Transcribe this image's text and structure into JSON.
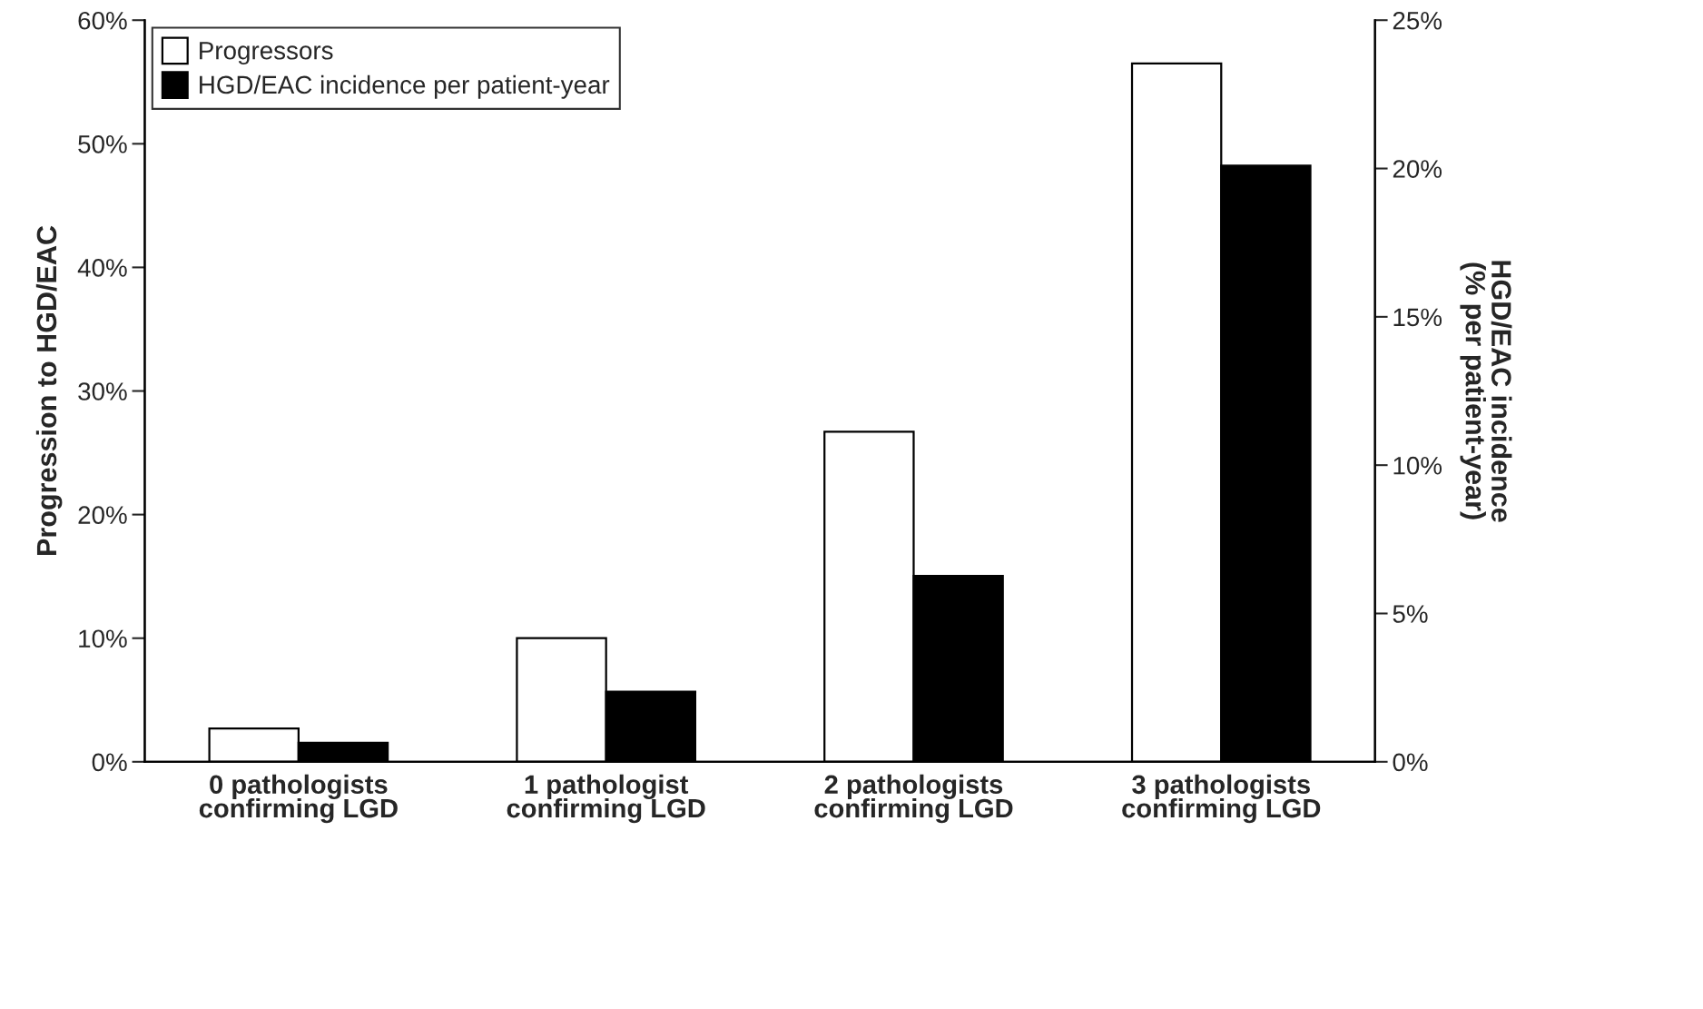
{
  "chart_data": {
    "type": "bar",
    "ylabel": "Progression to HGD/EAC",
    "y2label": "HGD/EAC incidence\n(% per patient-year)",
    "categories": [
      "0 pathologists\nconfirming LGD",
      "1 pathologist\nconfirming LGD",
      "2 pathologists\nconfirming LGD",
      "3 pathologists\nconfirming LGD"
    ],
    "series": [
      {
        "name": "Progressors",
        "color": "#ffffff",
        "values": [
          2.7,
          10,
          26.7,
          56.5
        ]
      },
      {
        "name": "HGD/EAC incidence per patient-year",
        "color": "#000000",
        "axis": "y2",
        "values": [
          0.64,
          2.36,
          6.27,
          20.1
        ]
      }
    ],
    "ylim": [
      0,
      60
    ],
    "yticks": [
      {
        "value": 0,
        "label": "0%"
      },
      {
        "value": 10,
        "label": "10%"
      },
      {
        "value": 20,
        "label": "20%"
      },
      {
        "value": 30,
        "label": "30%"
      },
      {
        "value": 40,
        "label": "40%"
      },
      {
        "value": 50,
        "label": "50%"
      },
      {
        "value": 60,
        "label": "60%"
      }
    ],
    "y2lim": [
      0,
      25
    ],
    "y2ticks": [
      {
        "value": 0,
        "label": "0%"
      },
      {
        "value": 5,
        "label": "5%"
      },
      {
        "value": 10,
        "label": "10%"
      },
      {
        "value": 15,
        "label": "15%"
      },
      {
        "value": 20,
        "label": "20%"
      },
      {
        "value": 25,
        "label": "25%"
      }
    ],
    "grid": false,
    "legend": "top left"
  }
}
